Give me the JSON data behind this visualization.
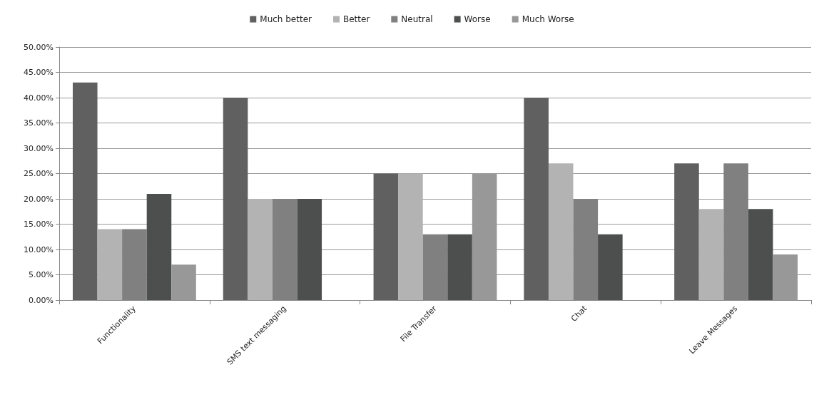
{
  "chart_data": {
    "type": "bar",
    "categories": [
      "Functionality",
      "SMS text messaging",
      "File Transfer",
      "Chat",
      "Leave Messages"
    ],
    "series": [
      {
        "name": "Much better",
        "color": "#606060",
        "values": [
          43,
          40,
          25,
          40,
          27
        ]
      },
      {
        "name": "Better",
        "color": "#b3b3b3",
        "values": [
          14,
          20,
          25,
          27,
          18
        ]
      },
      {
        "name": "Neutral",
        "color": "#808080",
        "values": [
          14,
          20,
          13,
          20,
          27
        ]
      },
      {
        "name": "Worse",
        "color": "#4d4f4e",
        "values": [
          21,
          20,
          13,
          13,
          18
        ]
      },
      {
        "name": "Much Worse",
        "color": "#989898",
        "values": [
          7,
          0,
          25,
          0,
          9
        ]
      }
    ],
    "ylim": [
      0,
      50
    ],
    "yticks": [
      {
        "value": 0,
        "label": "0.00%"
      },
      {
        "value": 5,
        "label": "5.00%"
      },
      {
        "value": 10,
        "label": "10.00%"
      },
      {
        "value": 15,
        "label": "15.00%"
      },
      {
        "value": 20,
        "label": "20.00%"
      },
      {
        "value": 25,
        "label": "25.00%"
      },
      {
        "value": 30,
        "label": "30.00%"
      },
      {
        "value": 35,
        "label": "35.00%"
      },
      {
        "value": 40,
        "label": "40.00%"
      },
      {
        "value": 45,
        "label": "45.00%"
      },
      {
        "value": 50,
        "label": "50.00%"
      }
    ],
    "grid": "y",
    "legend": "top"
  }
}
